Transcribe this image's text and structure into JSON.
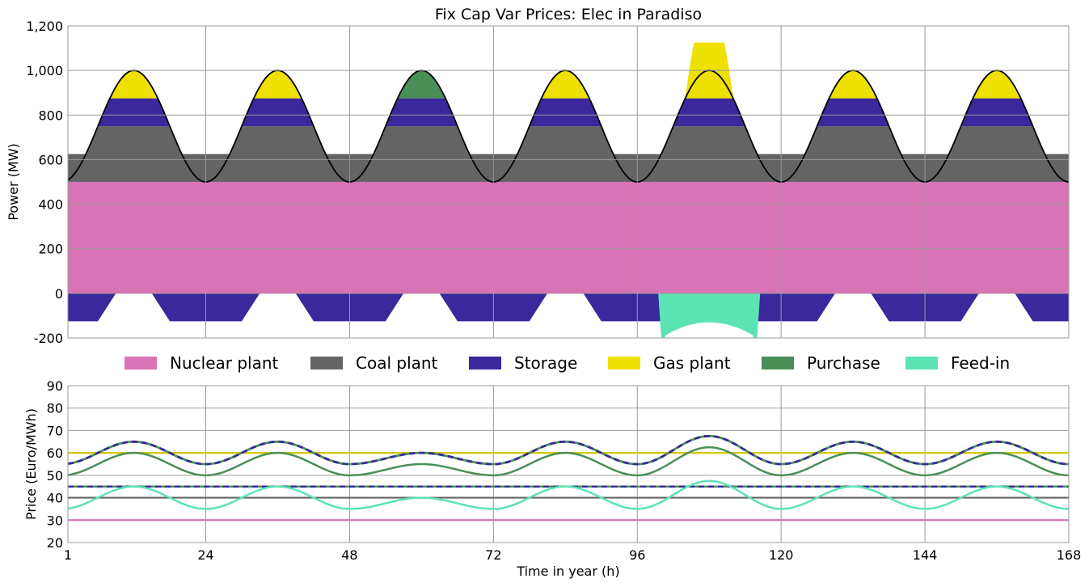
{
  "chart_data": [
    {
      "type": "area",
      "title": "Fix Cap Var Prices: Elec in Paradiso",
      "ylabel": "Power (MW)",
      "xlim": [
        1,
        168
      ],
      "ylim": [
        -200,
        1200
      ],
      "grid": true,
      "yticks": [
        "-200",
        "0",
        "200",
        "400",
        "600",
        "800",
        "1,000",
        "1,200"
      ],
      "ytick_values": [
        -200,
        0,
        200,
        400,
        600,
        800,
        1000,
        1200
      ],
      "demand": {
        "base": 750,
        "amplitude": 250,
        "period_h": 24,
        "peak_hour": 12,
        "color": "#000000"
      },
      "stack": [
        {
          "name": "Nuclear plant",
          "color": "#d873b5",
          "capacity": 500
        },
        {
          "name": "Coal plant",
          "color": "#646464",
          "capacity": 250
        },
        {
          "name": "Storage",
          "color": "#3a289c",
          "capacity": 125
        },
        {
          "name": "Gas plant",
          "color": "#eee000",
          "peak_day_value": 1125
        },
        {
          "name": "Purchase",
          "color": "#4b8f58"
        }
      ],
      "purchase_day": 3,
      "gas_peak_day": 5,
      "storage_charge": -125,
      "feed_in": {
        "name": "Feed-in",
        "color": "#5be3b3",
        "min": -200,
        "max": -130
      }
    },
    {
      "type": "line",
      "ylabel": "Price (Euro/MWh)",
      "xlabel": "Time in year (h)",
      "xlim": [
        1,
        168
      ],
      "ylim": [
        20,
        90
      ],
      "grid": true,
      "xticks": [
        "1",
        "24",
        "48",
        "72",
        "96",
        "120",
        "144",
        "168"
      ],
      "xtick_values": [
        1,
        24,
        48,
        72,
        96,
        120,
        144,
        168
      ],
      "yticks": [
        "20",
        "30",
        "40",
        "50",
        "60",
        "70",
        "80",
        "90"
      ],
      "ytick_values": [
        20,
        30,
        40,
        50,
        60,
        70,
        80,
        90
      ],
      "daily_amplitude": [
        10,
        10,
        5,
        10,
        12.5,
        10,
        10
      ],
      "series": [
        {
          "name": "Nuclear plant",
          "color": "#d873b5",
          "constant": 30
        },
        {
          "name": "Coal plant",
          "color": "#646464",
          "constant": 40
        },
        {
          "name": "Storage",
          "color": "#3a289c",
          "constant": 45,
          "dashed": true
        },
        {
          "name": "Gas plant",
          "color": "#d6c800",
          "constant": 60
        },
        {
          "name": "Purchase",
          "color": "#4b8f58",
          "base": 50,
          "dashed_top": true
        },
        {
          "name": "Feed-in",
          "color": "#5be3b3",
          "base": 35
        }
      ]
    }
  ],
  "legend": {
    "placement": "between-panels",
    "items": [
      {
        "label": "Nuclear plant",
        "color": "#d873b5"
      },
      {
        "label": "Coal plant",
        "color": "#646464"
      },
      {
        "label": "Storage",
        "color": "#3a289c"
      },
      {
        "label": "Gas plant",
        "color": "#eee000"
      },
      {
        "label": "Purchase",
        "color": "#4b8f58"
      },
      {
        "label": "Feed-in",
        "color": "#5be3b3"
      }
    ]
  }
}
